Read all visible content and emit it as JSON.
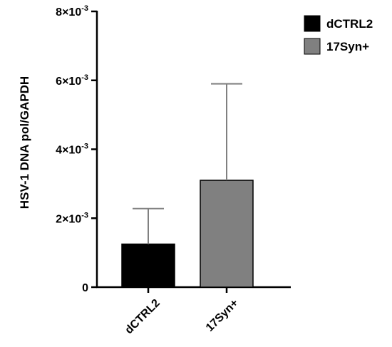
{
  "chart_data": {
    "type": "bar",
    "categories": [
      "dCTRL2",
      "17Syn+"
    ],
    "values": [
      0.00125,
      0.0031
    ],
    "error_upper": [
      0.00228,
      0.0059
    ],
    "colors": [
      "#000000",
      "#808080"
    ],
    "error_color": "#808080",
    "ylabel": "HSV-1 DNA pol/GAPDH",
    "xlabel": "",
    "ylim": [
      0,
      0.008
    ],
    "yticks": [
      {
        "value": 0,
        "label": "0"
      },
      {
        "value": 0.002,
        "mantissa": "2",
        "exponent": "-3"
      },
      {
        "value": 0.004,
        "mantissa": "4",
        "exponent": "-3"
      },
      {
        "value": 0.006,
        "mantissa": "6",
        "exponent": "-3"
      },
      {
        "value": 0.008,
        "mantissa": "8",
        "exponent": "-3"
      }
    ],
    "legend": {
      "placement": "top-right",
      "entries": [
        {
          "label": "dCTRL2",
          "color": "#000000"
        },
        {
          "label": "17Syn+",
          "color": "#808080"
        }
      ]
    },
    "grid": false
  }
}
